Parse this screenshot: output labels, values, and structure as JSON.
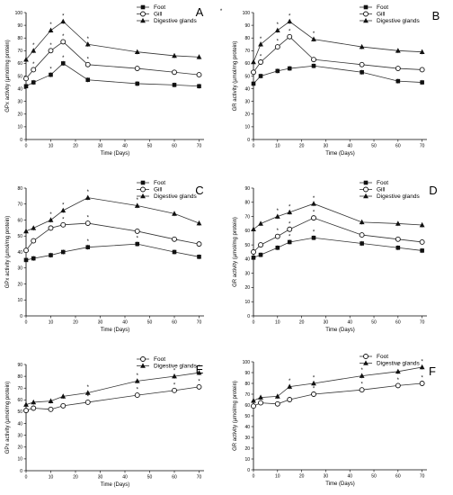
{
  "figure": {
    "panels": [
      {
        "letter": "A",
        "extra_mark": "*"
      },
      {
        "letter": "B"
      },
      {
        "letter": "C"
      },
      {
        "letter": "D"
      },
      {
        "letter": "E"
      },
      {
        "letter": "F"
      }
    ]
  },
  "style": {
    "line_color": "#333333",
    "marker_color": "#111111"
  },
  "chart_data": [
    {
      "type": "line",
      "xlabel": "Time (Days)",
      "ylabel": "GPx activity (µmol/mg protein)",
      "xlim": [
        0,
        70
      ],
      "ylim": [
        0,
        100
      ],
      "xticks": [
        "0",
        "10",
        "20",
        "30",
        "40",
        "50",
        "60",
        "70"
      ],
      "yticks": [
        "0",
        "10",
        "20",
        "30",
        "40",
        "50",
        "60",
        "70",
        "80",
        "90",
        "100"
      ],
      "legend_position": "top-right",
      "series": [
        {
          "name": "Foot",
          "marker": "square",
          "points": [
            [
              0,
              42
            ],
            [
              3,
              45
            ],
            [
              10,
              51
            ],
            [
              15,
              60
            ],
            [
              25,
              47
            ],
            [
              45,
              44
            ],
            [
              60,
              43
            ],
            [
              70,
              42
            ]
          ],
          "stars": [
            false,
            false,
            true,
            true,
            false,
            false,
            false,
            false
          ]
        },
        {
          "name": "Gill",
          "marker": "circle",
          "points": [
            [
              0,
              48
            ],
            [
              3,
              55
            ],
            [
              10,
              70
            ],
            [
              15,
              77
            ],
            [
              25,
              59
            ],
            [
              45,
              56
            ],
            [
              60,
              53
            ],
            [
              70,
              51
            ]
          ],
          "stars": [
            false,
            true,
            true,
            true,
            true,
            false,
            false,
            false
          ]
        },
        {
          "name": "Digestive glands",
          "marker": "triangle",
          "points": [
            [
              0,
              63
            ],
            [
              3,
              70
            ],
            [
              10,
              86
            ],
            [
              15,
              93
            ],
            [
              25,
              75
            ],
            [
              45,
              69
            ],
            [
              60,
              66
            ],
            [
              70,
              65
            ]
          ],
          "stars": [
            false,
            true,
            true,
            true,
            true,
            false,
            false,
            false
          ]
        }
      ]
    },
    {
      "type": "line",
      "xlabel": "Time (Days)",
      "ylabel": "GR activity (µmol/mg protein)",
      "xlim": [
        0,
        70
      ],
      "ylim": [
        0,
        100
      ],
      "xticks": [
        "0",
        "10",
        "20",
        "30",
        "40",
        "50",
        "60",
        "70"
      ],
      "yticks": [
        "0",
        "10",
        "20",
        "30",
        "40",
        "50",
        "60",
        "70",
        "80",
        "90",
        "100"
      ],
      "legend_position": "top-right",
      "series": [
        {
          "name": "Foot",
          "marker": "square",
          "points": [
            [
              0,
              44
            ],
            [
              3,
              50
            ],
            [
              10,
              54
            ],
            [
              15,
              56
            ],
            [
              25,
              58
            ],
            [
              45,
              53
            ],
            [
              60,
              46
            ],
            [
              70,
              45
            ]
          ],
          "stars": [
            false,
            false,
            false,
            false,
            false,
            false,
            false,
            false
          ]
        },
        {
          "name": "Gill",
          "marker": "circle",
          "points": [
            [
              0,
              53
            ],
            [
              3,
              61
            ],
            [
              10,
              73
            ],
            [
              15,
              81
            ],
            [
              25,
              63
            ],
            [
              45,
              59
            ],
            [
              60,
              56
            ],
            [
              70,
              55
            ]
          ],
          "stars": [
            false,
            true,
            true,
            true,
            false,
            false,
            false,
            false
          ]
        },
        {
          "name": "Digestive glands",
          "marker": "triangle",
          "points": [
            [
              0,
              61
            ],
            [
              3,
              75
            ],
            [
              10,
              86
            ],
            [
              15,
              93
            ],
            [
              25,
              79
            ],
            [
              45,
              73
            ],
            [
              60,
              70
            ],
            [
              70,
              69
            ]
          ],
          "stars": [
            false,
            true,
            true,
            true,
            true,
            false,
            false,
            false
          ]
        }
      ]
    },
    {
      "type": "line",
      "xlabel": "Time (Days)",
      "ylabel": "GPx activity (µmol/mg protein)",
      "xlim": [
        0,
        70
      ],
      "ylim": [
        0,
        80
      ],
      "xticks": [
        "0",
        "10",
        "20",
        "30",
        "40",
        "50",
        "60",
        "70"
      ],
      "yticks": [
        "0",
        "10",
        "20",
        "30",
        "40",
        "50",
        "60",
        "70",
        "80"
      ],
      "legend_position": "top-right",
      "series": [
        {
          "name": "Foot",
          "marker": "square",
          "points": [
            [
              0,
              35
            ],
            [
              3,
              36
            ],
            [
              10,
              38
            ],
            [
              15,
              40
            ],
            [
              25,
              43
            ],
            [
              45,
              45
            ],
            [
              60,
              40
            ],
            [
              70,
              37
            ]
          ],
          "stars": [
            false,
            false,
            false,
            false,
            true,
            true,
            false,
            false
          ]
        },
        {
          "name": "Gill",
          "marker": "circle",
          "points": [
            [
              0,
              41
            ],
            [
              3,
              47
            ],
            [
              10,
              55
            ],
            [
              15,
              57
            ],
            [
              25,
              58
            ],
            [
              45,
              53
            ],
            [
              60,
              48
            ],
            [
              70,
              45
            ]
          ],
          "stars": [
            false,
            false,
            true,
            true,
            true,
            false,
            false,
            false
          ]
        },
        {
          "name": "Digestive glands",
          "marker": "triangle",
          "points": [
            [
              0,
              53
            ],
            [
              3,
              55
            ],
            [
              10,
              60
            ],
            [
              15,
              66
            ],
            [
              25,
              74
            ],
            [
              45,
              69
            ],
            [
              60,
              64
            ],
            [
              70,
              58
            ]
          ],
          "stars": [
            false,
            false,
            true,
            true,
            true,
            true,
            false,
            false
          ]
        }
      ]
    },
    {
      "type": "line",
      "xlabel": "Time (Days)",
      "ylabel": "GR activity (µmol/mg protein)",
      "xlim": [
        0,
        70
      ],
      "ylim": [
        0,
        90
      ],
      "xticks": [
        "0",
        "10",
        "20",
        "30",
        "40",
        "50",
        "60",
        "70"
      ],
      "yticks": [
        "0",
        "10",
        "20",
        "30",
        "40",
        "50",
        "60",
        "70",
        "80",
        "90"
      ],
      "legend_position": "top-right",
      "series": [
        {
          "name": "Foot",
          "marker": "square",
          "points": [
            [
              0,
              41
            ],
            [
              3,
              43
            ],
            [
              10,
              48
            ],
            [
              15,
              52
            ],
            [
              25,
              55
            ],
            [
              45,
              51
            ],
            [
              60,
              48
            ],
            [
              70,
              46
            ]
          ],
          "stars": [
            false,
            false,
            false,
            true,
            true,
            false,
            false,
            false
          ]
        },
        {
          "name": "Gill",
          "marker": "circle",
          "points": [
            [
              0,
              45
            ],
            [
              3,
              50
            ],
            [
              10,
              56
            ],
            [
              15,
              61
            ],
            [
              25,
              69
            ],
            [
              45,
              57
            ],
            [
              60,
              54
            ],
            [
              70,
              52
            ]
          ],
          "stars": [
            false,
            false,
            true,
            true,
            true,
            false,
            false,
            false
          ]
        },
        {
          "name": "Digestive glands",
          "marker": "triangle",
          "points": [
            [
              0,
              61
            ],
            [
              3,
              65
            ],
            [
              10,
              70
            ],
            [
              15,
              73
            ],
            [
              25,
              79
            ],
            [
              45,
              66
            ],
            [
              60,
              65
            ],
            [
              70,
              64
            ]
          ],
          "stars": [
            false,
            false,
            true,
            true,
            true,
            false,
            false,
            false
          ]
        }
      ]
    },
    {
      "type": "line",
      "xlabel": "Time (Days)",
      "ylabel": "GPx activity (µmol/mg protein)",
      "xlim": [
        0,
        70
      ],
      "ylim": [
        0,
        90
      ],
      "xticks": [
        "0",
        "10",
        "20",
        "30",
        "40",
        "50",
        "60",
        "70"
      ],
      "yticks": [
        "0",
        "10",
        "20",
        "30",
        "40",
        "50",
        "60",
        "70",
        "80",
        "90"
      ],
      "legend_position": "top-right",
      "series": [
        {
          "name": "Foot",
          "marker": "circle",
          "points": [
            [
              0,
              51
            ],
            [
              3,
              53
            ],
            [
              10,
              52
            ],
            [
              15,
              55
            ],
            [
              25,
              58
            ],
            [
              45,
              64
            ],
            [
              60,
              68
            ],
            [
              70,
              71
            ]
          ],
          "stars": [
            false,
            false,
            false,
            false,
            true,
            true,
            true,
            true
          ]
        },
        {
          "name": "Digestive glands",
          "marker": "triangle",
          "points": [
            [
              0,
              56
            ],
            [
              3,
              58
            ],
            [
              10,
              59
            ],
            [
              15,
              63
            ],
            [
              25,
              66
            ],
            [
              45,
              76
            ],
            [
              60,
              80
            ],
            [
              70,
              83
            ]
          ],
          "stars": [
            false,
            false,
            false,
            false,
            true,
            true,
            true,
            true
          ]
        }
      ]
    },
    {
      "type": "line",
      "xlabel": "Time (Days)",
      "ylabel": "GR activity (µmol/mg protein)",
      "xlim": [
        0,
        70
      ],
      "ylim": [
        0,
        100
      ],
      "xticks": [
        "0",
        "10",
        "20",
        "30",
        "40",
        "50",
        "60",
        "70"
      ],
      "yticks": [
        "0",
        "10",
        "20",
        "30",
        "40",
        "50",
        "60",
        "70",
        "80",
        "90",
        "100"
      ],
      "legend_position": "top-right",
      "series": [
        {
          "name": "Foot",
          "marker": "circle",
          "points": [
            [
              0,
              59
            ],
            [
              3,
              62
            ],
            [
              10,
              61
            ],
            [
              15,
              65
            ],
            [
              25,
              70
            ],
            [
              45,
              74
            ],
            [
              60,
              78
            ],
            [
              70,
              80
            ]
          ],
          "stars": [
            false,
            false,
            false,
            false,
            true,
            true,
            true,
            true
          ]
        },
        {
          "name": "Digestive glands",
          "marker": "triangle",
          "points": [
            [
              0,
              64
            ],
            [
              3,
              67
            ],
            [
              10,
              68
            ],
            [
              15,
              77
            ],
            [
              25,
              80
            ],
            [
              45,
              87
            ],
            [
              60,
              91
            ],
            [
              70,
              95
            ]
          ],
          "stars": [
            false,
            false,
            false,
            true,
            true,
            true,
            true,
            true
          ]
        }
      ]
    }
  ]
}
